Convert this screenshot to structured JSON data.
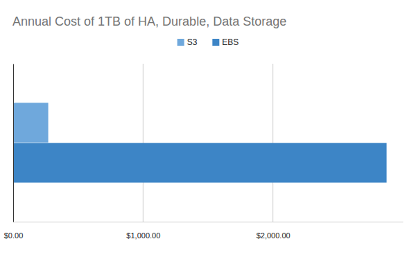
{
  "chart_data": {
    "type": "bar",
    "title": "Annual Cost of 1TB of HA, Durable, Data Storage",
    "orientation": "horizontal",
    "categories": [
      null
    ],
    "series": [
      {
        "name": "S3",
        "color": "#6fa8dc",
        "values": [
          270
        ]
      },
      {
        "name": "EBS",
        "color": "#3d85c6",
        "values": [
          2875
        ]
      }
    ],
    "xlim": [
      0,
      3000
    ],
    "xticks": [
      {
        "value": 0,
        "label": "$0.00"
      },
      {
        "value": 1000,
        "label": "$1,000.00"
      },
      {
        "value": 2000,
        "label": "$2,000.00"
      }
    ],
    "grid": true,
    "legend": "top"
  }
}
